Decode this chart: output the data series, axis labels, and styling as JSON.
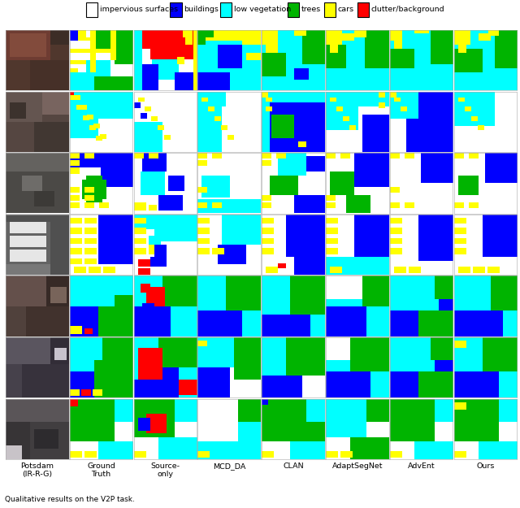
{
  "legend_items": [
    {
      "label": "impervious surfaces",
      "color": "#ffffff",
      "edgecolor": "#000000"
    },
    {
      "label": "buildings",
      "color": "#0000ff",
      "edgecolor": "#000000"
    },
    {
      "label": "low vegetation",
      "color": "#00ffff",
      "edgecolor": "#000000"
    },
    {
      "label": "trees",
      "color": "#00b400",
      "edgecolor": "#000000"
    },
    {
      "label": "cars",
      "color": "#ffff00",
      "edgecolor": "#000000"
    },
    {
      "label": "clutter/background",
      "color": "#ff0000",
      "edgecolor": "#000000"
    }
  ],
  "col_labels": [
    "Potsdam\n(IR-R-G)",
    "Ground\nTruth",
    "Source-\nonly",
    "MCD_DA",
    "CLAN",
    "AdaptSegNet",
    "AdvEnt",
    "Ours"
  ],
  "bottom_note": "Qualitative results on the V2P task.",
  "nrows": 7,
  "ncols": 8
}
